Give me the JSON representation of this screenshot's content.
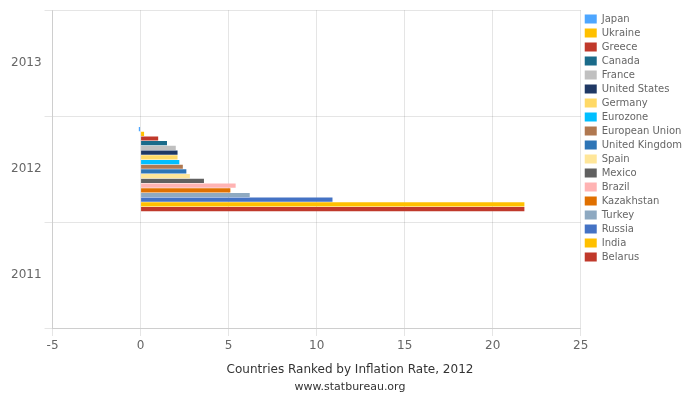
{
  "chart_data": {
    "type": "bar",
    "orientation": "horizontal",
    "title": "Countries Ranked by Inflation Rate, 2012",
    "subtitle": "www.statbureau.org",
    "x": [
      2012
    ],
    "series": [
      {
        "name": "Japan",
        "color": "#4da6ff",
        "values": [
          -0.1
        ]
      },
      {
        "name": "Ukraine",
        "color": "#ffc000",
        "values": [
          0.2
        ]
      },
      {
        "name": "Greece",
        "color": "#c0392b",
        "values": [
          1.0
        ]
      },
      {
        "name": "Canada",
        "color": "#1a6b8a",
        "values": [
          1.5
        ]
      },
      {
        "name": "France",
        "color": "#c0c0c0",
        "values": [
          2.0
        ]
      },
      {
        "name": "United States",
        "color": "#1f3864",
        "values": [
          2.1
        ]
      },
      {
        "name": "Germany",
        "color": "#ffd966",
        "values": [
          2.1
        ]
      },
      {
        "name": "Eurozone",
        "color": "#00bfff",
        "values": [
          2.2
        ]
      },
      {
        "name": "European Union",
        "color": "#b07850",
        "values": [
          2.4
        ]
      },
      {
        "name": "United Kingdom",
        "color": "#2e75b6",
        "values": [
          2.6
        ]
      },
      {
        "name": "Spain",
        "color": "#ffe699",
        "values": [
          2.8
        ]
      },
      {
        "name": "Mexico",
        "color": "#606060",
        "values": [
          3.6
        ]
      },
      {
        "name": "Brazil",
        "color": "#ffb3b3",
        "values": [
          5.4
        ]
      },
      {
        "name": "Kazakhstan",
        "color": "#e07000",
        "values": [
          5.1
        ]
      },
      {
        "name": "Turkey",
        "color": "#8ea9c1",
        "values": [
          6.2
        ]
      },
      {
        "name": "Russia",
        "color": "#4472c4",
        "values": [
          10.9
        ]
      },
      {
        "name": "India",
        "color": "#ffc000",
        "values": [
          21.8
        ]
      },
      {
        "name": "Belarus",
        "color": "#c0392b",
        "values": [
          21.8
        ]
      }
    ],
    "xlim": [
      -5,
      25
    ],
    "xticks": [
      -5,
      0,
      5,
      10,
      15,
      20,
      25
    ],
    "ylim": [
      2011,
      2013
    ],
    "yticks": [
      2011,
      2012,
      2013
    ],
    "grid": true,
    "legend": "right"
  }
}
